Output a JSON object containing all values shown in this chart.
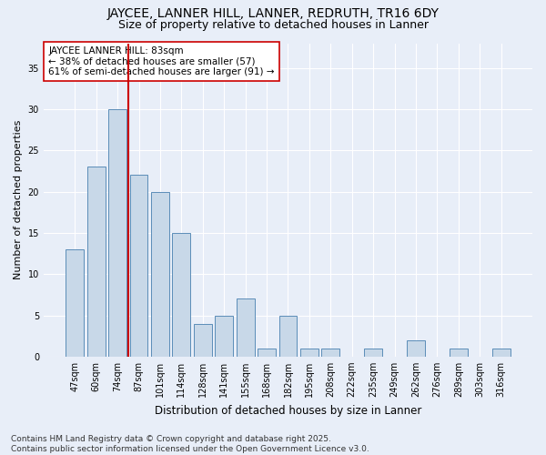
{
  "title1": "JAYCEE, LANNER HILL, LANNER, REDRUTH, TR16 6DY",
  "title2": "Size of property relative to detached houses in Lanner",
  "xlabel": "Distribution of detached houses by size in Lanner",
  "ylabel": "Number of detached properties",
  "categories": [
    "47sqm",
    "60sqm",
    "74sqm",
    "87sqm",
    "101sqm",
    "114sqm",
    "128sqm",
    "141sqm",
    "155sqm",
    "168sqm",
    "182sqm",
    "195sqm",
    "208sqm",
    "222sqm",
    "235sqm",
    "249sqm",
    "262sqm",
    "276sqm",
    "289sqm",
    "303sqm",
    "316sqm"
  ],
  "values": [
    13,
    23,
    30,
    22,
    20,
    15,
    4,
    5,
    7,
    1,
    5,
    1,
    1,
    0,
    1,
    0,
    2,
    0,
    1,
    0,
    1
  ],
  "bar_color": "#c8d8e8",
  "bar_edge_color": "#5b8db8",
  "vline_x": 2.5,
  "vline_color": "#cc0000",
  "annotation_text": "JAYCEE LANNER HILL: 83sqm\n← 38% of detached houses are smaller (57)\n61% of semi-detached houses are larger (91) →",
  "annotation_box_color": "#ffffff",
  "annotation_box_edge": "#cc0000",
  "ylim": [
    0,
    38
  ],
  "yticks": [
    0,
    5,
    10,
    15,
    20,
    25,
    30,
    35
  ],
  "background_color": "#e8eef8",
  "grid_color": "#ffffff",
  "footer": "Contains HM Land Registry data © Crown copyright and database right 2025.\nContains public sector information licensed under the Open Government Licence v3.0.",
  "title1_fontsize": 10,
  "title2_fontsize": 9,
  "annotation_fontsize": 7.5,
  "footer_fontsize": 6.5,
  "ylabel_fontsize": 8,
  "xlabel_fontsize": 8.5,
  "tick_fontsize": 7
}
